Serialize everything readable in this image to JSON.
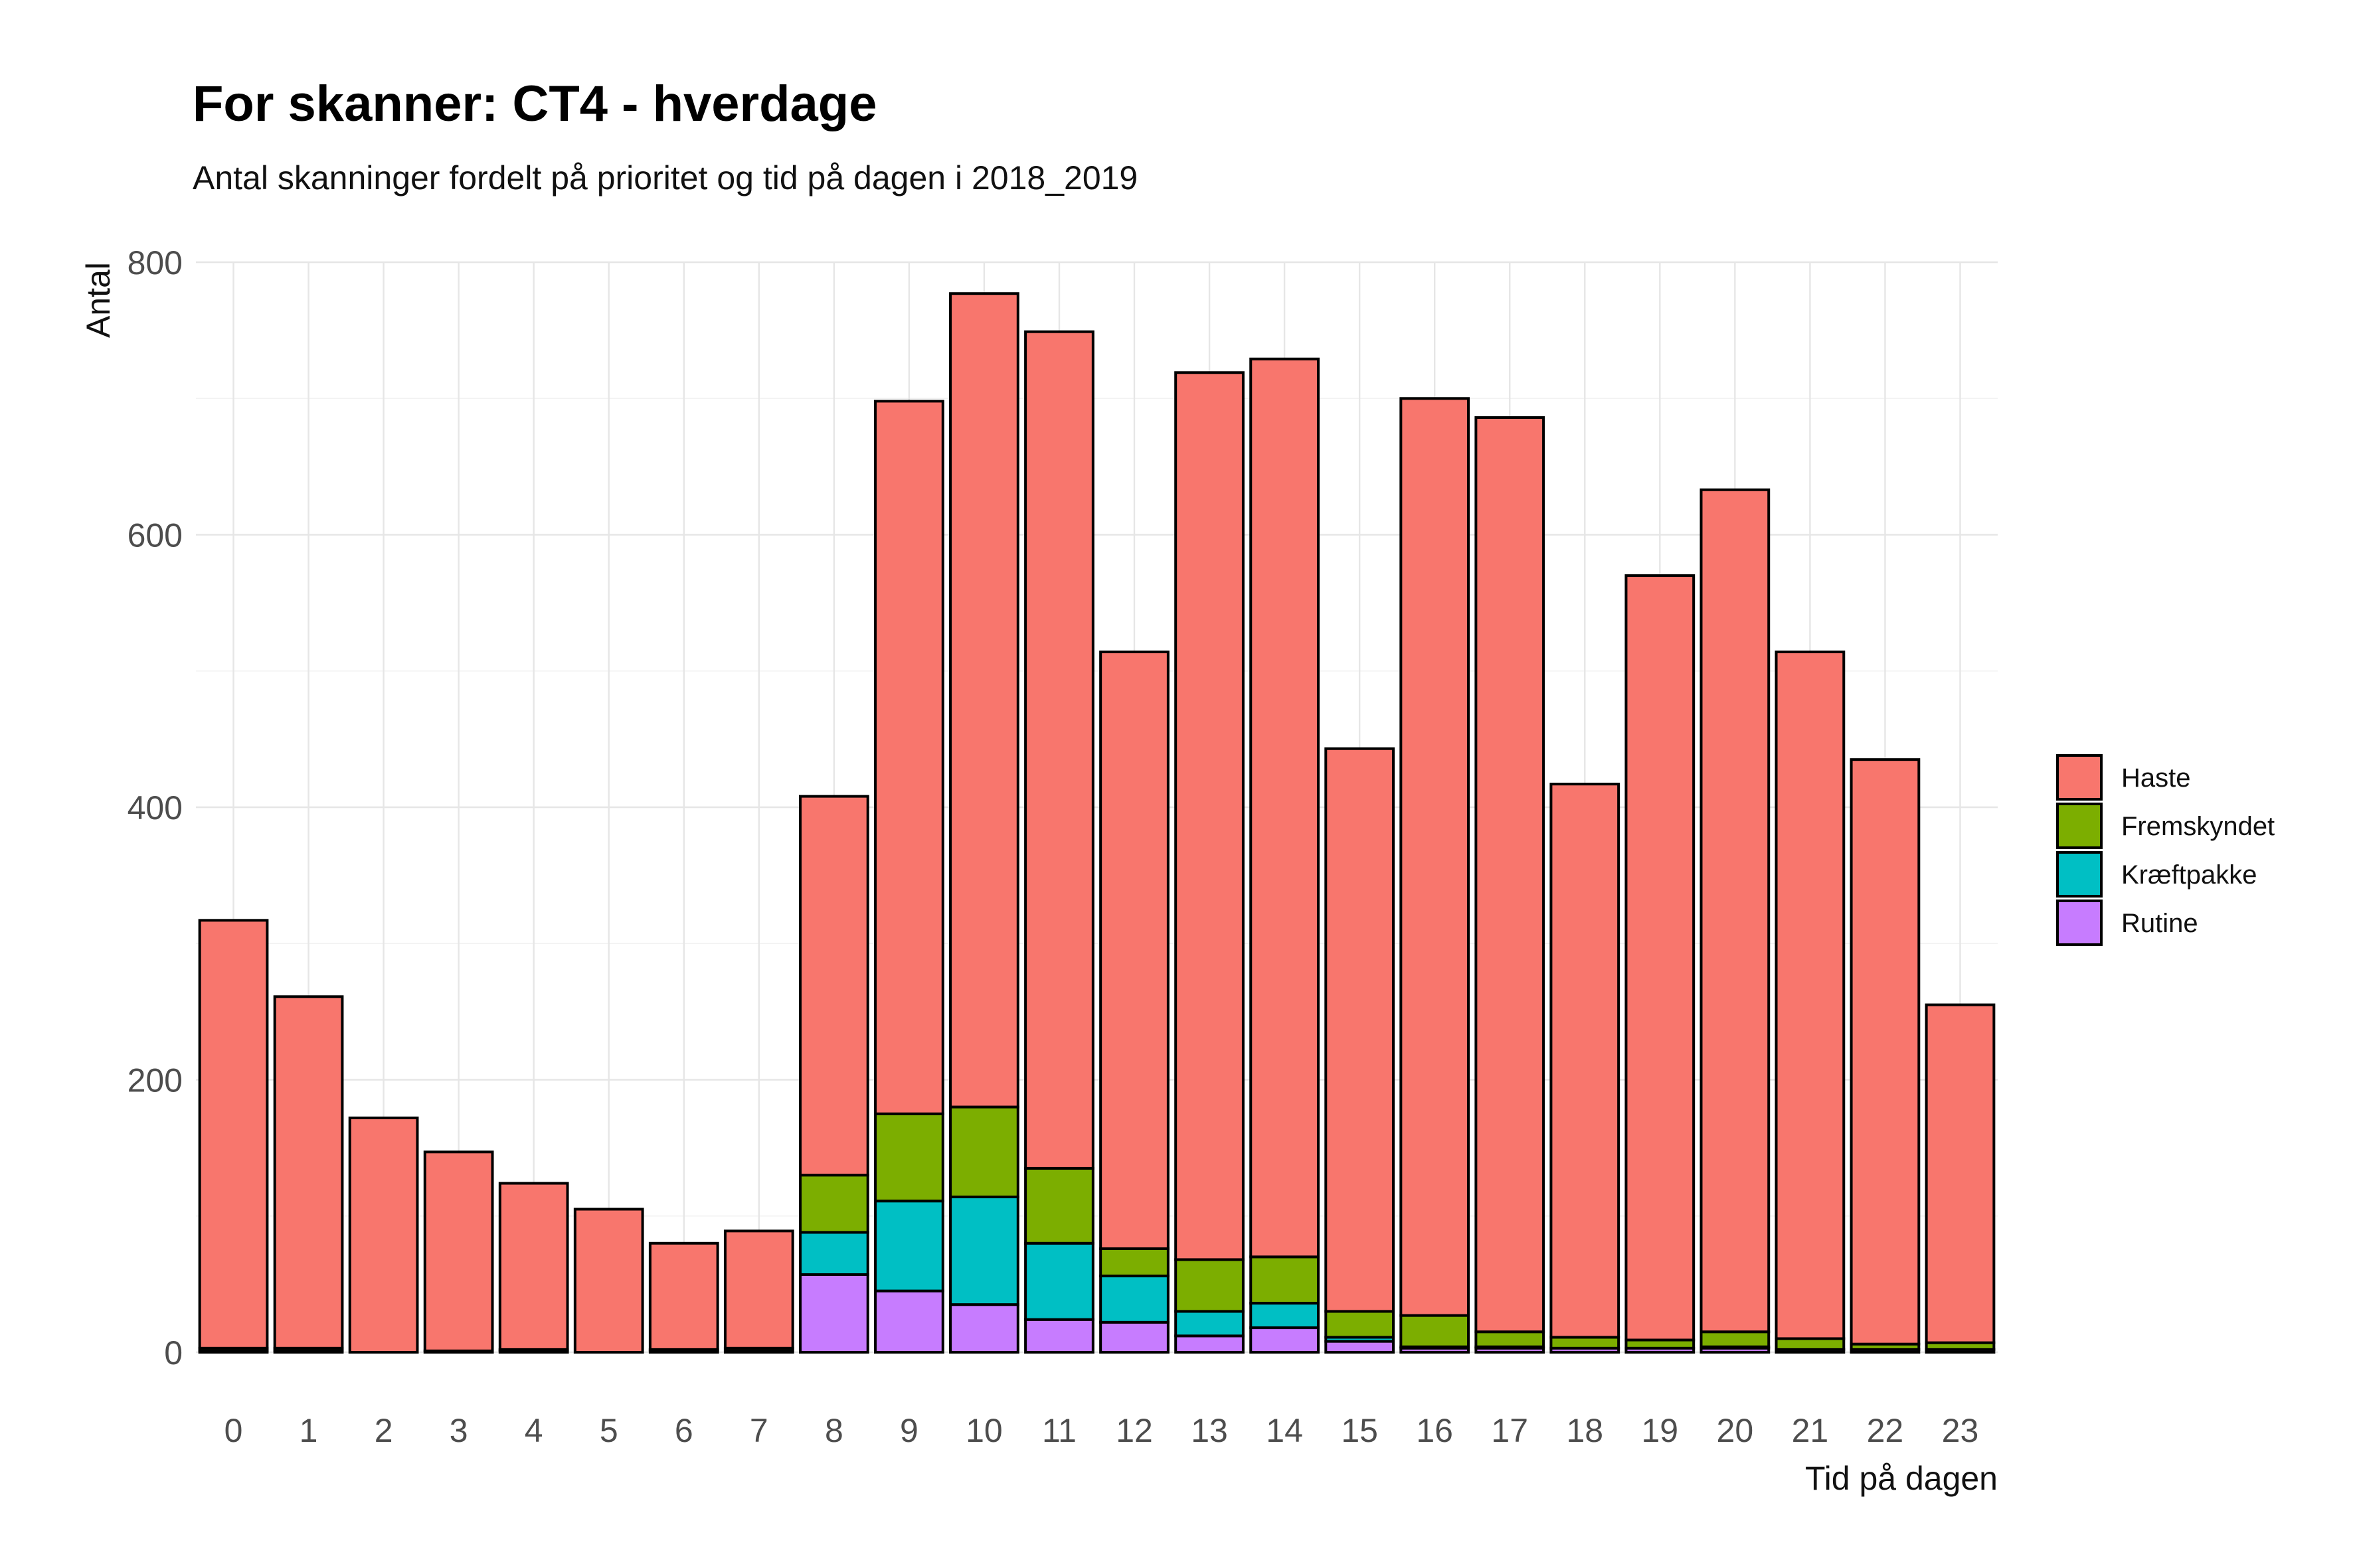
{
  "chart_data": {
    "type": "bar",
    "stacked": true,
    "title": "For skanner: CT4 - hverdage",
    "subtitle": "Antal skanninger fordelt på prioritet og tid på dagen i 2018_2019",
    "xlabel": "Tid på dagen",
    "ylabel": "Antal",
    "ylim": [
      0,
      800
    ],
    "yticks": [
      0,
      200,
      400,
      600,
      800
    ],
    "grid": true,
    "legend_position": "right",
    "categories": [
      "0",
      "1",
      "2",
      "3",
      "4",
      "5",
      "6",
      "7",
      "8",
      "9",
      "10",
      "11",
      "12",
      "13",
      "14",
      "15",
      "16",
      "17",
      "18",
      "19",
      "20",
      "21",
      "22",
      "23"
    ],
    "series": [
      {
        "name": "Rutine",
        "color": "#C77CFF",
        "values": [
          0,
          0,
          0,
          0,
          0,
          0,
          0,
          0,
          57,
          45,
          35,
          24,
          22,
          12,
          18,
          8,
          3,
          3,
          3,
          3,
          3,
          2,
          2,
          2
        ]
      },
      {
        "name": "Kræftpakke",
        "color": "#00BFC4",
        "values": [
          1,
          1,
          0,
          0,
          1,
          0,
          1,
          1,
          31,
          66,
          79,
          56,
          34,
          18,
          18,
          3,
          1,
          1,
          0,
          0,
          1,
          0,
          0,
          0
        ]
      },
      {
        "name": "Fremskyndet",
        "color": "#7CAE00",
        "values": [
          2,
          2,
          0,
          1,
          1,
          0,
          1,
          2,
          42,
          64,
          66,
          55,
          20,
          38,
          34,
          19,
          23,
          11,
          8,
          6,
          11,
          8,
          4,
          5
        ]
      },
      {
        "name": "Haste",
        "color": "#F8766D",
        "values": [
          314,
          258,
          172,
          146,
          122,
          105,
          78,
          86,
          278,
          523,
          597,
          614,
          438,
          651,
          659,
          413,
          673,
          671,
          406,
          561,
          618,
          504,
          429,
          248
        ]
      }
    ],
    "legend_order": [
      "Haste",
      "Fremskyndet",
      "Kræftpakke",
      "Rutine"
    ]
  }
}
